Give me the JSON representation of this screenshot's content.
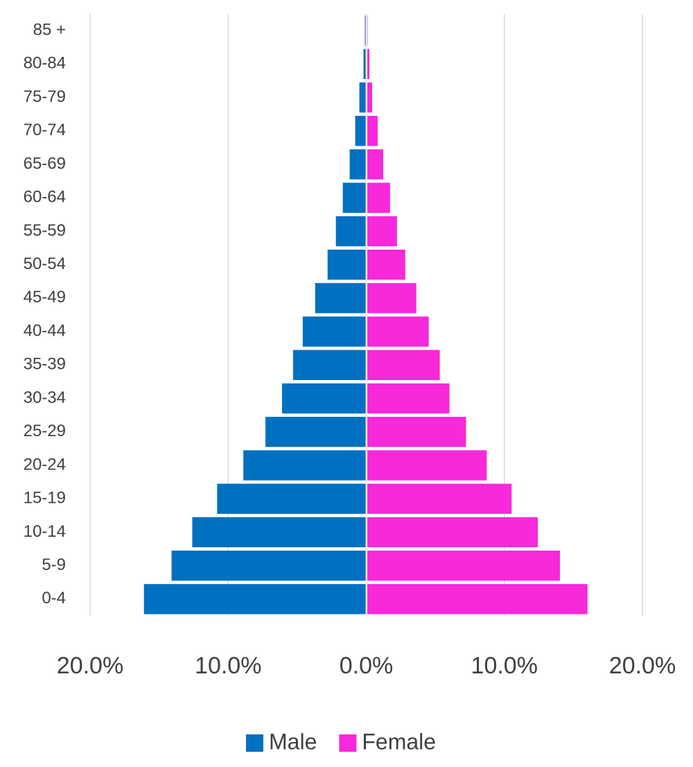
{
  "chart_data": {
    "type": "pyramid",
    "categories": [
      "0-4",
      "5-9",
      "10-14",
      "15-19",
      "20-24",
      "25-29",
      "30-34",
      "35-39",
      "40-44",
      "45-49",
      "50-54",
      "55-59",
      "60-64",
      "65-69",
      "70-74",
      "75-79",
      "80-84",
      "85 +"
    ],
    "series": [
      {
        "name": "Male",
        "color": "#0070c0",
        "values": [
          -16.1,
          -14.1,
          -12.6,
          -10.8,
          -8.9,
          -7.3,
          -6.1,
          -5.3,
          -4.6,
          -3.7,
          -2.8,
          -2.2,
          -1.7,
          -1.2,
          -0.8,
          -0.5,
          -0.2,
          -0.1
        ]
      },
      {
        "name": "Female",
        "color": "#f828db",
        "values": [
          16.0,
          14.0,
          12.4,
          10.5,
          8.7,
          7.2,
          6.0,
          5.3,
          4.5,
          3.6,
          2.8,
          2.2,
          1.7,
          1.2,
          0.8,
          0.4,
          0.2,
          0.05
        ]
      }
    ],
    "xlim": [
      -20,
      20
    ],
    "xticks": [
      {
        "value": -20,
        "label": "20.0%"
      },
      {
        "value": -10,
        "label": "10.0%"
      },
      {
        "value": 0,
        "label": "0.0%"
      },
      {
        "value": 10,
        "label": "10.0%"
      },
      {
        "value": 20,
        "label": "20.0%"
      }
    ],
    "grid": true,
    "legend": "bottom"
  }
}
